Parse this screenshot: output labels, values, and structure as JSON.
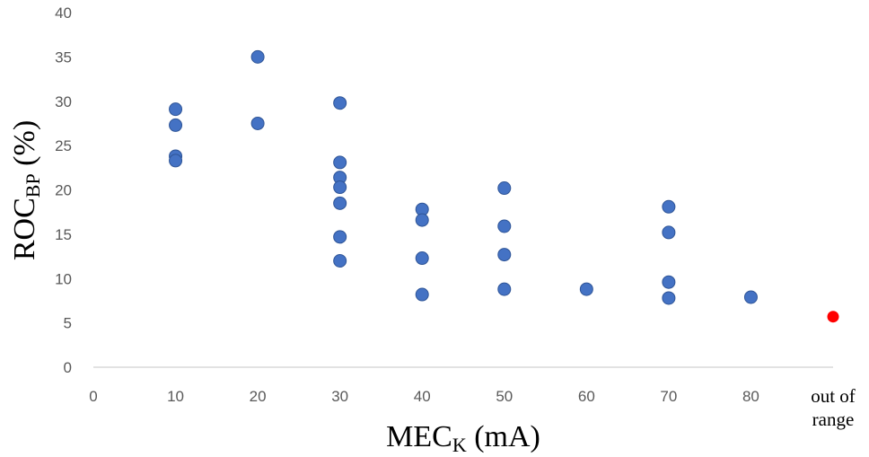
{
  "chart_data": {
    "type": "scatter",
    "xlabel": {
      "main": "MEC",
      "sub": "K",
      "unit": " (mA)"
    },
    "ylabel": {
      "main": "ROC",
      "sub": "BP",
      "unit": " (%)"
    },
    "x_ticks": [
      "0",
      "10",
      "20",
      "30",
      "40",
      "50",
      "60",
      "70",
      "80"
    ],
    "x_extra_tick": {
      "lines": [
        "out of",
        "range"
      ],
      "position": 90
    },
    "y_ticks": [
      "0",
      "5",
      "10",
      "15",
      "20",
      "25",
      "30",
      "35",
      "40"
    ],
    "xlim": [
      0,
      90
    ],
    "ylim": [
      0,
      40
    ],
    "colors": {
      "series": "#4472C4",
      "series_stroke": "#2F5597",
      "out_of_range": "#FF0000",
      "axis": "#D9D9D9"
    },
    "series": [
      {
        "points": [
          {
            "x": 10,
            "y": 29.1
          },
          {
            "x": 10,
            "y": 27.3
          },
          {
            "x": 10,
            "y": 23.8
          },
          {
            "x": 10,
            "y": 23.3
          },
          {
            "x": 20,
            "y": 35.0
          },
          {
            "x": 20,
            "y": 27.5
          },
          {
            "x": 30,
            "y": 29.8
          },
          {
            "x": 30,
            "y": 23.1
          },
          {
            "x": 30,
            "y": 21.4
          },
          {
            "x": 30,
            "y": 20.3
          },
          {
            "x": 30,
            "y": 18.5
          },
          {
            "x": 30,
            "y": 14.7
          },
          {
            "x": 30,
            "y": 12.0
          },
          {
            "x": 40,
            "y": 17.8
          },
          {
            "x": 40,
            "y": 16.6
          },
          {
            "x": 40,
            "y": 12.3
          },
          {
            "x": 40,
            "y": 8.2
          },
          {
            "x": 50,
            "y": 20.2
          },
          {
            "x": 50,
            "y": 15.9
          },
          {
            "x": 50,
            "y": 12.7
          },
          {
            "x": 50,
            "y": 8.8
          },
          {
            "x": 60,
            "y": 8.8
          },
          {
            "x": 70,
            "y": 18.1
          },
          {
            "x": 70,
            "y": 15.2
          },
          {
            "x": 70,
            "y": 9.6
          },
          {
            "x": 70,
            "y": 7.8
          },
          {
            "x": 80,
            "y": 7.9
          }
        ]
      },
      {
        "points": [
          {
            "x": 90,
            "y": 5.7
          }
        ]
      }
    ]
  }
}
